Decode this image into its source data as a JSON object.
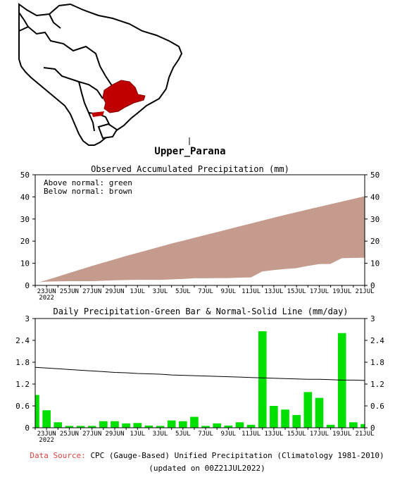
{
  "region": {
    "label": "Upper_Parana",
    "colors": {
      "land": "#ffffff",
      "border": "#000000",
      "basin": "#c00000"
    }
  },
  "chart_data": [
    {
      "type": "area",
      "title": "Observed Accumulated Precipitation (mm)",
      "legend_text": [
        "Above normal: green",
        "Below normal: brown"
      ],
      "x": [
        "2022-06-22",
        "2022-06-23",
        "2022-06-24",
        "2022-06-25",
        "2022-06-26",
        "2022-06-27",
        "2022-06-28",
        "2022-06-29",
        "2022-06-30",
        "2022-07-01",
        "2022-07-02",
        "2022-07-03",
        "2022-07-04",
        "2022-07-05",
        "2022-07-06",
        "2022-07-07",
        "2022-07-08",
        "2022-07-09",
        "2022-07-10",
        "2022-07-11",
        "2022-07-12",
        "2022-07-13",
        "2022-07-14",
        "2022-07-15",
        "2022-07-16",
        "2022-07-17",
        "2022-07-18",
        "2022-07-19",
        "2022-07-20",
        "2022-07-21"
      ],
      "x_tick_labels": [
        "23JUN",
        "25JUN",
        "27JUN",
        "29JUN",
        "1JUL",
        "3JUL",
        "5JUL",
        "7JUL",
        "9JUL",
        "11JUL",
        "13JUL",
        "15JUL",
        "17JUL",
        "19JUL",
        "21JUL"
      ],
      "x_tick_sublabel": "2022",
      "ylim": [
        0,
        50
      ],
      "yticks": [
        0,
        10,
        20,
        30,
        40,
        50
      ],
      "series": [
        {
          "role": "normal",
          "values": [
            0.8,
            2.4,
            4.0,
            5.6,
            7.2,
            8.8,
            10.3,
            11.8,
            13.3,
            14.7,
            16.1,
            17.5,
            18.9,
            20.2,
            21.5,
            22.8,
            24.1,
            25.4,
            26.7,
            28.0,
            29.3,
            30.6,
            31.9,
            33.1,
            34.3,
            35.5,
            36.7,
            37.9,
            39.1,
            40.3
          ]
        },
        {
          "role": "observed",
          "values": [
            0.9,
            1.4,
            1.5,
            1.6,
            1.6,
            1.6,
            1.8,
            2.0,
            2.1,
            2.2,
            2.2,
            2.2,
            2.4,
            2.6,
            2.9,
            2.9,
            3.0,
            3.0,
            3.2,
            3.3,
            6.0,
            6.6,
            7.1,
            7.5,
            8.5,
            9.3,
            9.4,
            12.0,
            12.1,
            12.2
          ]
        }
      ],
      "colors": {
        "below_normal": "#c49b8d",
        "above_normal": "#00e000",
        "observed_line": "#ffffff"
      }
    },
    {
      "type": "bar",
      "title": "Daily Precipitation-Green Bar & Normal-Solid Line (mm/day)",
      "x": [
        "2022-06-22",
        "2022-06-23",
        "2022-06-24",
        "2022-06-25",
        "2022-06-26",
        "2022-06-27",
        "2022-06-28",
        "2022-06-29",
        "2022-06-30",
        "2022-07-01",
        "2022-07-02",
        "2022-07-03",
        "2022-07-04",
        "2022-07-05",
        "2022-07-06",
        "2022-07-07",
        "2022-07-08",
        "2022-07-09",
        "2022-07-10",
        "2022-07-11",
        "2022-07-12",
        "2022-07-13",
        "2022-07-14",
        "2022-07-15",
        "2022-07-16",
        "2022-07-17",
        "2022-07-18",
        "2022-07-19",
        "2022-07-20",
        "2022-07-21"
      ],
      "x_tick_labels": [
        "23JUN",
        "25JUN",
        "27JUN",
        "29JUN",
        "1JUL",
        "3JUL",
        "5JUL",
        "7JUL",
        "9JUL",
        "11JUL",
        "13JUL",
        "15JUL",
        "17JUL",
        "19JUL",
        "21JUL"
      ],
      "x_tick_sublabel": "2022",
      "ylim": [
        0,
        3
      ],
      "yticks": [
        "0",
        "0.6",
        "1.2",
        "1.8",
        "2.4",
        "3"
      ],
      "series": [
        {
          "role": "daily",
          "values": [
            0.9,
            0.48,
            0.15,
            0.05,
            0.05,
            0.05,
            0.18,
            0.18,
            0.12,
            0.13,
            0.06,
            0.05,
            0.2,
            0.18,
            0.3,
            0.05,
            0.12,
            0.06,
            0.15,
            0.08,
            2.65,
            0.6,
            0.5,
            0.35,
            0.98,
            0.82,
            0.08,
            2.6,
            0.15,
            0.1
          ]
        },
        {
          "role": "normal",
          "values": [
            1.66,
            1.64,
            1.62,
            1.6,
            1.58,
            1.56,
            1.54,
            1.52,
            1.51,
            1.49,
            1.48,
            1.47,
            1.45,
            1.44,
            1.43,
            1.42,
            1.41,
            1.4,
            1.39,
            1.38,
            1.37,
            1.36,
            1.35,
            1.34,
            1.33,
            1.33,
            1.32,
            1.31,
            1.31,
            1.3
          ]
        }
      ],
      "colors": {
        "bar": "#00e000",
        "line": "#000000"
      }
    }
  ],
  "footer": {
    "source_label": "Data Source:",
    "source_text": "CPC (Gauge-Based) Unified Precipitation (Climatology 1981-2010)",
    "updated": "(updated on 00Z21JUL2022)"
  }
}
